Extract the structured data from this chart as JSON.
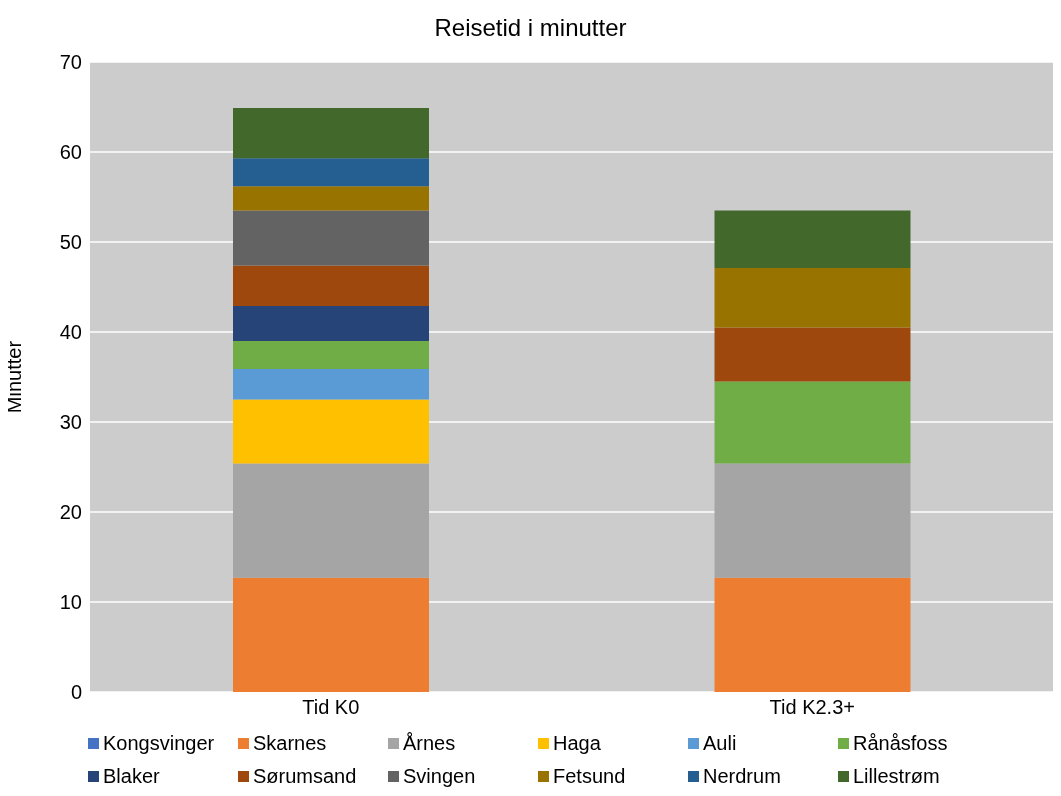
{
  "chart_data": {
    "type": "bar",
    "title": "Reisetid i minutter",
    "ylabel": "Minutter",
    "stacked": true,
    "categories": [
      "Tid K0",
      "Tid K2.3+"
    ],
    "series": [
      {
        "name": "Kongsvinger",
        "color": "#4472c4",
        "values": [
          0,
          0
        ]
      },
      {
        "name": "Skarnes",
        "color": "#ed7d31",
        "values": [
          12.7,
          12.7
        ]
      },
      {
        "name": "Årnes",
        "color": "#a5a5a5",
        "values": [
          12.7,
          12.7
        ]
      },
      {
        "name": "Haga",
        "color": "#ffc000",
        "values": [
          7.1,
          0
        ]
      },
      {
        "name": "Auli",
        "color": "#5b9bd5",
        "values": [
          3.4,
          0
        ]
      },
      {
        "name": "Rånåsfoss",
        "color": "#70ad47",
        "values": [
          3.1,
          9.1
        ]
      },
      {
        "name": "Blaker",
        "color": "#264478",
        "values": [
          3.9,
          0
        ]
      },
      {
        "name": "Sørumsand",
        "color": "#9e480e",
        "values": [
          4.5,
          6.0
        ]
      },
      {
        "name": "Svingen",
        "color": "#636363",
        "values": [
          6.1,
          0
        ]
      },
      {
        "name": "Fetsund",
        "color": "#997300",
        "values": [
          2.7,
          6.6
        ]
      },
      {
        "name": "Nerdrum",
        "color": "#255e91",
        "values": [
          3.1,
          0
        ]
      },
      {
        "name": "Lillestrøm",
        "color": "#43682b",
        "values": [
          5.6,
          6.4
        ]
      }
    ],
    "ylim": [
      0,
      70
    ],
    "yticks": [
      0,
      10,
      20,
      30,
      40,
      50,
      60,
      70
    ],
    "grid": "y",
    "legend": "bottom"
  }
}
